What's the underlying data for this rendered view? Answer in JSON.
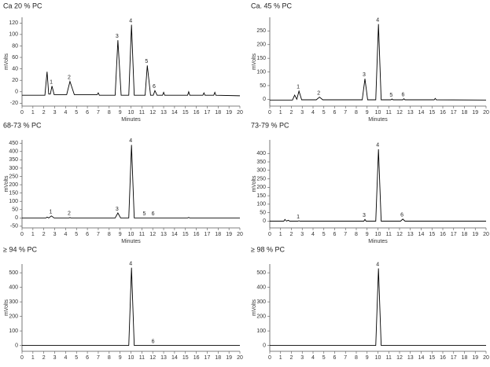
{
  "chart_data": [
    {
      "type": "line",
      "title": "Ca 20 % PC",
      "xlabel": "Minutes",
      "ylabel": "mVolts",
      "color": "#000000",
      "x": [
        0,
        2.1,
        2.3,
        2.45,
        2.6,
        2.75,
        2.95,
        4.1,
        4.4,
        4.8,
        6.9,
        7.0,
        7.1,
        8.55,
        8.8,
        9.1,
        9.8,
        10.05,
        10.3,
        11.3,
        11.5,
        11.8,
        12.05,
        12.2,
        12.4,
        12.9,
        13.0,
        13.1,
        15.2,
        15.3,
        15.4,
        16.6,
        16.7,
        16.8,
        17.6,
        17.7,
        17.8,
        20
      ],
      "values": [
        -6,
        -6,
        35,
        -4,
        -4,
        10,
        -5,
        -5,
        18,
        -5,
        -5,
        -2,
        -6,
        -6,
        90,
        -6,
        -6,
        117,
        -6,
        -6,
        46,
        -6,
        -6,
        2,
        -6,
        -6,
        -1,
        -6,
        -6,
        0,
        -6,
        -6,
        -2,
        -6,
        -6,
        -1,
        -6,
        -7
      ],
      "peaks": [
        {
          "label": "1",
          "x": 2.75
        },
        {
          "label": "2",
          "x": 4.4
        },
        {
          "label": "3",
          "x": 8.8
        },
        {
          "label": "4",
          "x": 10.05
        },
        {
          "label": "5",
          "x": 11.5
        },
        {
          "label": "6",
          "x": 12.2
        }
      ],
      "xlim": [
        0,
        20
      ],
      "xticks": [
        0,
        1,
        2,
        3,
        4,
        5,
        6,
        7,
        8,
        9,
        10,
        11,
        12,
        13,
        14,
        15,
        16,
        17,
        18,
        19,
        20
      ],
      "ylim": [
        -25,
        130
      ],
      "yticks": [
        -20,
        0,
        20,
        40,
        60,
        80,
        100,
        120
      ]
    },
    {
      "type": "line",
      "title": "Ca. 45 % PC",
      "xlabel": "Minutes",
      "ylabel": "mVolts",
      "color": "#000000",
      "x": [
        0,
        2.1,
        2.3,
        2.5,
        2.7,
        2.95,
        4.3,
        4.6,
        4.9,
        8.55,
        8.8,
        9.05,
        9.8,
        10.05,
        10.3,
        11.2,
        11.3,
        11.4,
        12.3,
        12.4,
        12.5,
        15.2,
        15.3,
        15.4,
        20
      ],
      "values": [
        -3,
        -3,
        15,
        0,
        30,
        -2,
        -2,
        8,
        -2,
        -2,
        75,
        -2,
        -2,
        275,
        -2,
        -2,
        1,
        -2,
        -2,
        2,
        -2,
        -2,
        3,
        -2,
        -3
      ],
      "peaks": [
        {
          "label": "1",
          "x": 2.7
        },
        {
          "label": "2",
          "x": 4.6
        },
        {
          "label": "3",
          "x": 8.8
        },
        {
          "label": "4",
          "x": 10.05
        },
        {
          "label": "5",
          "x": 11.3
        },
        {
          "label": "6",
          "x": 12.4
        }
      ],
      "xlim": [
        0,
        20
      ],
      "xticks": [
        0,
        1,
        2,
        3,
        4,
        5,
        6,
        7,
        8,
        9,
        10,
        11,
        12,
        13,
        14,
        15,
        16,
        17,
        18,
        19,
        20
      ],
      "ylim": [
        -25,
        300
      ],
      "yticks": [
        0,
        50,
        100,
        150,
        200,
        250
      ]
    },
    {
      "type": "line",
      "title": "68-73 % PC",
      "xlabel": "Minutes",
      "ylabel": "mVolts",
      "color": "#000000",
      "x": [
        0,
        2.2,
        2.3,
        2.45,
        2.7,
        2.95,
        4.3,
        4.4,
        4.5,
        8.55,
        8.8,
        9.05,
        9.8,
        10.05,
        10.3,
        11.2,
        11.3,
        11.4,
        12.0,
        12.1,
        12.2,
        15.2,
        15.3,
        15.4,
        20
      ],
      "values": [
        0,
        0,
        5,
        0,
        12,
        0,
        0,
        2,
        0,
        0,
        30,
        0,
        0,
        440,
        0,
        0,
        0,
        0,
        0,
        0,
        0,
        0,
        3,
        0,
        0
      ],
      "peaks": [
        {
          "label": "1",
          "x": 2.7
        },
        {
          "label": "2",
          "x": 4.4
        },
        {
          "label": "3",
          "x": 8.8
        },
        {
          "label": "4",
          "x": 10.05
        },
        {
          "label": "5",
          "x": 11.3
        },
        {
          "label": "6",
          "x": 12.1
        }
      ],
      "xlim": [
        0,
        20
      ],
      "xticks": [
        0,
        1,
        2,
        3,
        4,
        5,
        6,
        7,
        8,
        9,
        10,
        11,
        12,
        13,
        14,
        15,
        16,
        17,
        18,
        19,
        20
      ],
      "ylim": [
        -60,
        470
      ],
      "yticks": [
        -50,
        0,
        50,
        100,
        150,
        200,
        250,
        300,
        350,
        400,
        450
      ]
    },
    {
      "type": "line",
      "title": "73-79 % PC",
      "xlabel": "Minutes",
      "ylabel": "mVolts",
      "color": "#000000",
      "x": [
        0,
        1.3,
        1.4,
        1.55,
        1.7,
        1.85,
        2.6,
        2.7,
        2.8,
        8.7,
        8.8,
        8.9,
        9.8,
        10.05,
        10.3,
        12.1,
        12.3,
        12.5,
        20
      ],
      "values": [
        0,
        0,
        10,
        0,
        5,
        0,
        0,
        2,
        0,
        0,
        10,
        0,
        0,
        425,
        0,
        0,
        12,
        0,
        0
      ],
      "peaks": [
        {
          "label": "1",
          "x": 2.7
        },
        {
          "label": "3",
          "x": 8.8
        },
        {
          "label": "4",
          "x": 10.05
        },
        {
          "label": "6",
          "x": 12.3
        }
      ],
      "xlim": [
        0,
        20
      ],
      "xticks": [
        0,
        1,
        2,
        3,
        4,
        5,
        6,
        7,
        8,
        9,
        10,
        11,
        12,
        13,
        14,
        15,
        16,
        17,
        18,
        19,
        20
      ],
      "ylim": [
        -40,
        480
      ],
      "yticks": [
        0,
        50,
        100,
        150,
        200,
        250,
        300,
        350,
        400
      ]
    },
    {
      "type": "line",
      "title": "≥ 94 % PC",
      "ylabel": "mVolts",
      "color": "#000000",
      "x": [
        0,
        9.8,
        10.05,
        10.3,
        20
      ],
      "values": [
        0,
        0,
        535,
        0,
        0
      ],
      "peaks": [
        {
          "label": "4",
          "x": 10.05
        },
        {
          "label": "6",
          "x": 12.1
        }
      ],
      "xlim": [
        0,
        20
      ],
      "xticks": [
        0,
        1,
        2,
        3,
        4,
        5,
        6,
        7,
        8,
        9,
        10,
        11,
        12,
        13,
        14,
        15,
        16,
        17,
        18,
        19,
        20
      ],
      "ylim": [
        -40,
        560
      ],
      "yticks": [
        0,
        100,
        200,
        300,
        400,
        500
      ]
    },
    {
      "type": "line",
      "title": "≥ 98 % PC",
      "ylabel": "mVolts",
      "color": "#000000",
      "x": [
        0,
        9.8,
        10.05,
        10.3,
        20
      ],
      "values": [
        0,
        0,
        530,
        0,
        0
      ],
      "peaks": [
        {
          "label": "4",
          "x": 10.05
        }
      ],
      "xlim": [
        0,
        20
      ],
      "xticks": [
        0,
        1,
        2,
        3,
        4,
        5,
        6,
        7,
        8,
        9,
        10,
        11,
        12,
        13,
        14,
        15,
        16,
        17,
        18,
        19,
        20
      ],
      "ylim": [
        -40,
        560
      ],
      "yticks": [
        0,
        100,
        200,
        300,
        400,
        500
      ]
    }
  ]
}
